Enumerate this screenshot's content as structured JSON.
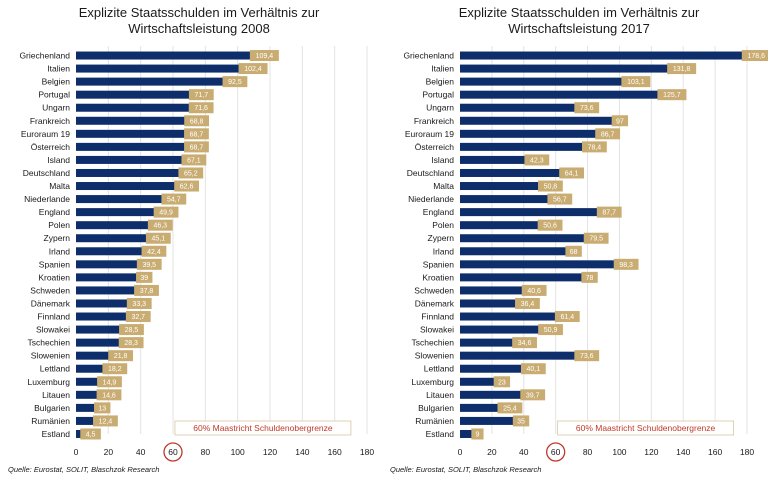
{
  "colors": {
    "bar": "#0d2d6b",
    "label_bg": "#c9ac72",
    "highlight": "#c0392b",
    "grid": "#e3e3e3"
  },
  "source": "Quelle: Eurostat, SOLIT, Blaschzok Research",
  "chart_data": [
    {
      "type": "bar",
      "orientation": "horizontal",
      "title": "Explizite Staatsschulden im Verhältnis zur Wirtschaftsleistung 2008",
      "annotation": "60% Maastricht Schuldenobergrenze",
      "highlight_tick": 60,
      "xlim": [
        0,
        180
      ],
      "xticks": [
        0,
        20,
        40,
        60,
        80,
        100,
        120,
        140,
        160,
        180
      ],
      "grid": true,
      "categories": [
        "Griechenland",
        "Italien",
        "Belgien",
        "Portugal",
        "Ungarn",
        "Frankreich",
        "Euroraum 19",
        "Österreich",
        "Island",
        "Deutschland",
        "Malta",
        "Niederlande",
        "England",
        "Polen",
        "Zypern",
        "Irland",
        "Spanien",
        "Kroatien",
        "Schweden",
        "Dänemark",
        "Finnland",
        "Slowakei",
        "Tschechien",
        "Slowenien",
        "Lettland",
        "Luxemburg",
        "Litauen",
        "Bulgarien",
        "Rumänien",
        "Estland"
      ],
      "values": [
        109.4,
        102.4,
        92.5,
        71.7,
        71.6,
        68.8,
        68.7,
        68.7,
        67.1,
        65.2,
        62.6,
        54.7,
        49.9,
        46.3,
        45.1,
        42.4,
        39.5,
        39,
        37.8,
        33.3,
        32.7,
        28.5,
        28.3,
        21.8,
        18.2,
        14.9,
        14.6,
        13,
        12.4,
        4.5
      ],
      "labels": [
        "109,4",
        "102,4",
        "92,5",
        "71,7",
        "71,6",
        "68,8",
        "68,7",
        "68,7",
        "67,1",
        "65,2",
        "62,6",
        "54,7",
        "49,9",
        "46,3",
        "45,1",
        "42,4",
        "39,5",
        "39",
        "37,8",
        "33,3",
        "32,7",
        "28,5",
        "28,3",
        "21,8",
        "18,2",
        "14,9",
        "14,6",
        "13",
        "12,4",
        "4,5"
      ]
    },
    {
      "type": "bar",
      "orientation": "horizontal",
      "title": "Explizite Staatsschulden im Verhältnis zur Wirtschaftsleistung 2017",
      "annotation": "60% Maastricht Schuldenobergrenze",
      "highlight_tick": 60,
      "xlim": [
        0,
        180
      ],
      "xticks": [
        0,
        20,
        40,
        60,
        80,
        100,
        120,
        140,
        160,
        180
      ],
      "grid": true,
      "categories": [
        "Griechenland",
        "Italien",
        "Belgien",
        "Portugal",
        "Ungarn",
        "Frankreich",
        "Euroraum 19",
        "Österreich",
        "Island",
        "Deutschland",
        "Malta",
        "Niederlande",
        "England",
        "Polen",
        "Zypern",
        "Irland",
        "Spanien",
        "Kroatien",
        "Schweden",
        "Dänemark",
        "Finnland",
        "Slowakei",
        "Tschechien",
        "Slowenien",
        "Lettland",
        "Luxemburg",
        "Litauen",
        "Bulgarien",
        "Rumänien",
        "Estland"
      ],
      "values": [
        178.6,
        131.8,
        103.1,
        125.7,
        73.6,
        97,
        86.7,
        78.4,
        42.3,
        64.1,
        50.8,
        56.7,
        87.7,
        50.6,
        79.5,
        68,
        98.3,
        78,
        40.6,
        36.4,
        61.4,
        50.9,
        34.6,
        73.6,
        40.1,
        23,
        39.7,
        25.4,
        35,
        9
      ],
      "labels": [
        "178,6",
        "131,8",
        "103,1",
        "125,7",
        "73,6",
        "97",
        "86,7",
        "78,4",
        "42,3",
        "64,1",
        "50,8",
        "56,7",
        "87,7",
        "50,6",
        "79,5",
        "68",
        "98,3",
        "78",
        "40,6",
        "36,4",
        "61,4",
        "50,9",
        "34,6",
        "73,6",
        "40,1",
        "23",
        "39,7",
        "25,4",
        "35",
        "9"
      ]
    }
  ]
}
